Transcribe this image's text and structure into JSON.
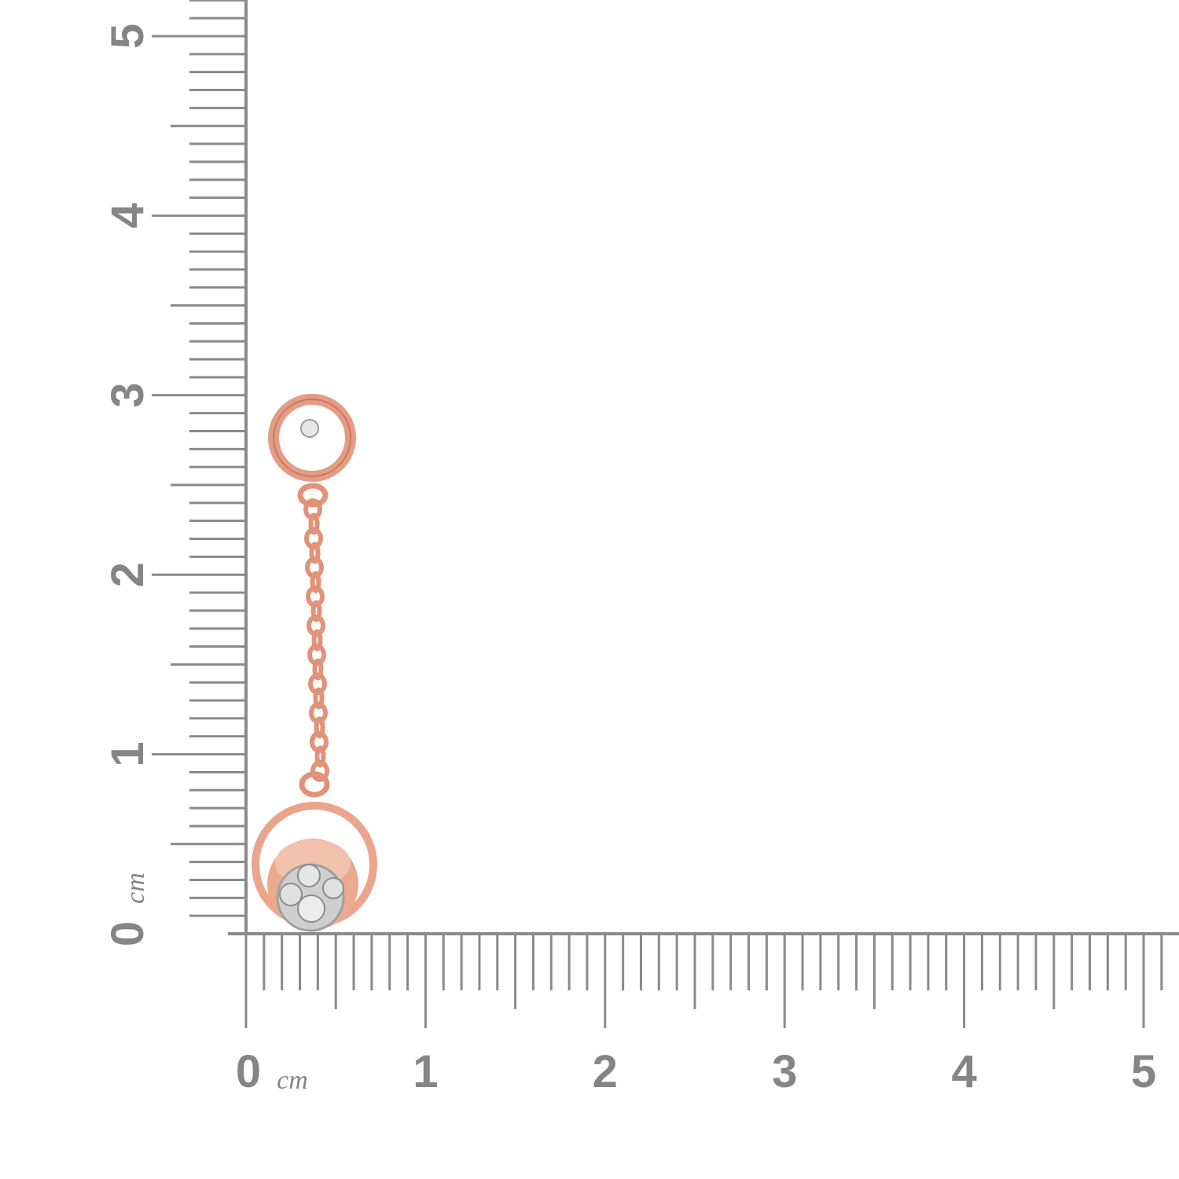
{
  "ruler": {
    "unit": "cm",
    "x_labels": [
      0,
      1,
      2,
      3,
      4,
      5
    ],
    "y_labels": [
      0,
      1,
      2,
      3,
      4,
      5
    ]
  }
}
